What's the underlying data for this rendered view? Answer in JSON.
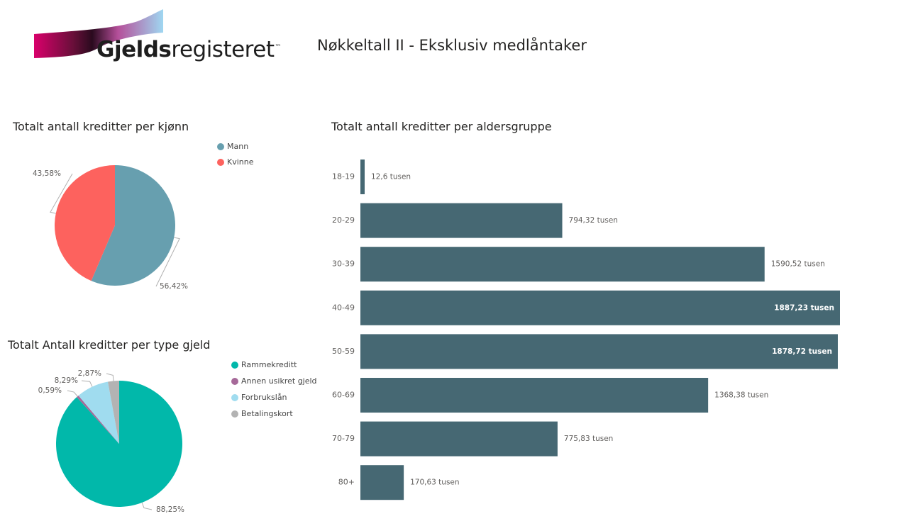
{
  "logo": {
    "text_bold": "Gjelds",
    "text_regular": "registeret",
    "trademark": "™"
  },
  "report_title": "Nøkkeltall II - Eksklusiv medlåntaker",
  "colors": {
    "mann": "#679FAF",
    "kvinne": "#FD625E",
    "rammekreditt": "#01B8AA",
    "annen_usikret": "#A66999",
    "forbrukslan": "#A0DCEF",
    "betalingskort": "#B3B3B3",
    "bar": "#466873",
    "label": "#605E5C"
  },
  "chart_data": [
    {
      "id": "gender",
      "type": "pie",
      "title": "Totalt antall kreditter per kjønn",
      "legend_position": "top-right",
      "slices": [
        {
          "name": "Mann",
          "value": 56.42,
          "label": "56,42%",
          "color": "#679FAF"
        },
        {
          "name": "Kvinne",
          "value": 43.58,
          "label": "43,58%",
          "color": "#FD625E"
        }
      ]
    },
    {
      "id": "type",
      "type": "pie",
      "title": "Totalt Antall kreditter per type gjeld",
      "legend_position": "top-right",
      "slices": [
        {
          "name": "Rammekreditt",
          "value": 88.25,
          "label": "88,25%",
          "color": "#01B8AA"
        },
        {
          "name": "Annen usikret gjeld",
          "value": 0.59,
          "label": "0,59%",
          "color": "#A66999"
        },
        {
          "name": "Forbrukslån",
          "value": 8.29,
          "label": "8,29%",
          "color": "#A0DCEF"
        },
        {
          "name": "Betalingskort",
          "value": 2.87,
          "label": "2,87%",
          "color": "#B3B3B3"
        }
      ]
    },
    {
      "id": "age",
      "type": "bar",
      "orientation": "horizontal",
      "title": "Totalt antall kreditter per aldersgruppe",
      "unit": "tusen",
      "categories": [
        "18-19",
        "20-29",
        "30-39",
        "40-49",
        "50-59",
        "60-69",
        "70-79",
        "80+"
      ],
      "values": [
        12.6,
        794.32,
        1590.52,
        1887.23,
        1878.72,
        1368.38,
        775.83,
        170.63
      ],
      "labels": [
        "12,6 tusen",
        "794,32 tusen",
        "1590,52 tusen",
        "1887,23 tusen",
        "1878,72 tusen",
        "1368,38 tusen",
        "775,83 tusen",
        "170,63 tusen"
      ],
      "xlim": [
        0,
        1887.23
      ],
      "grid": false
    }
  ]
}
